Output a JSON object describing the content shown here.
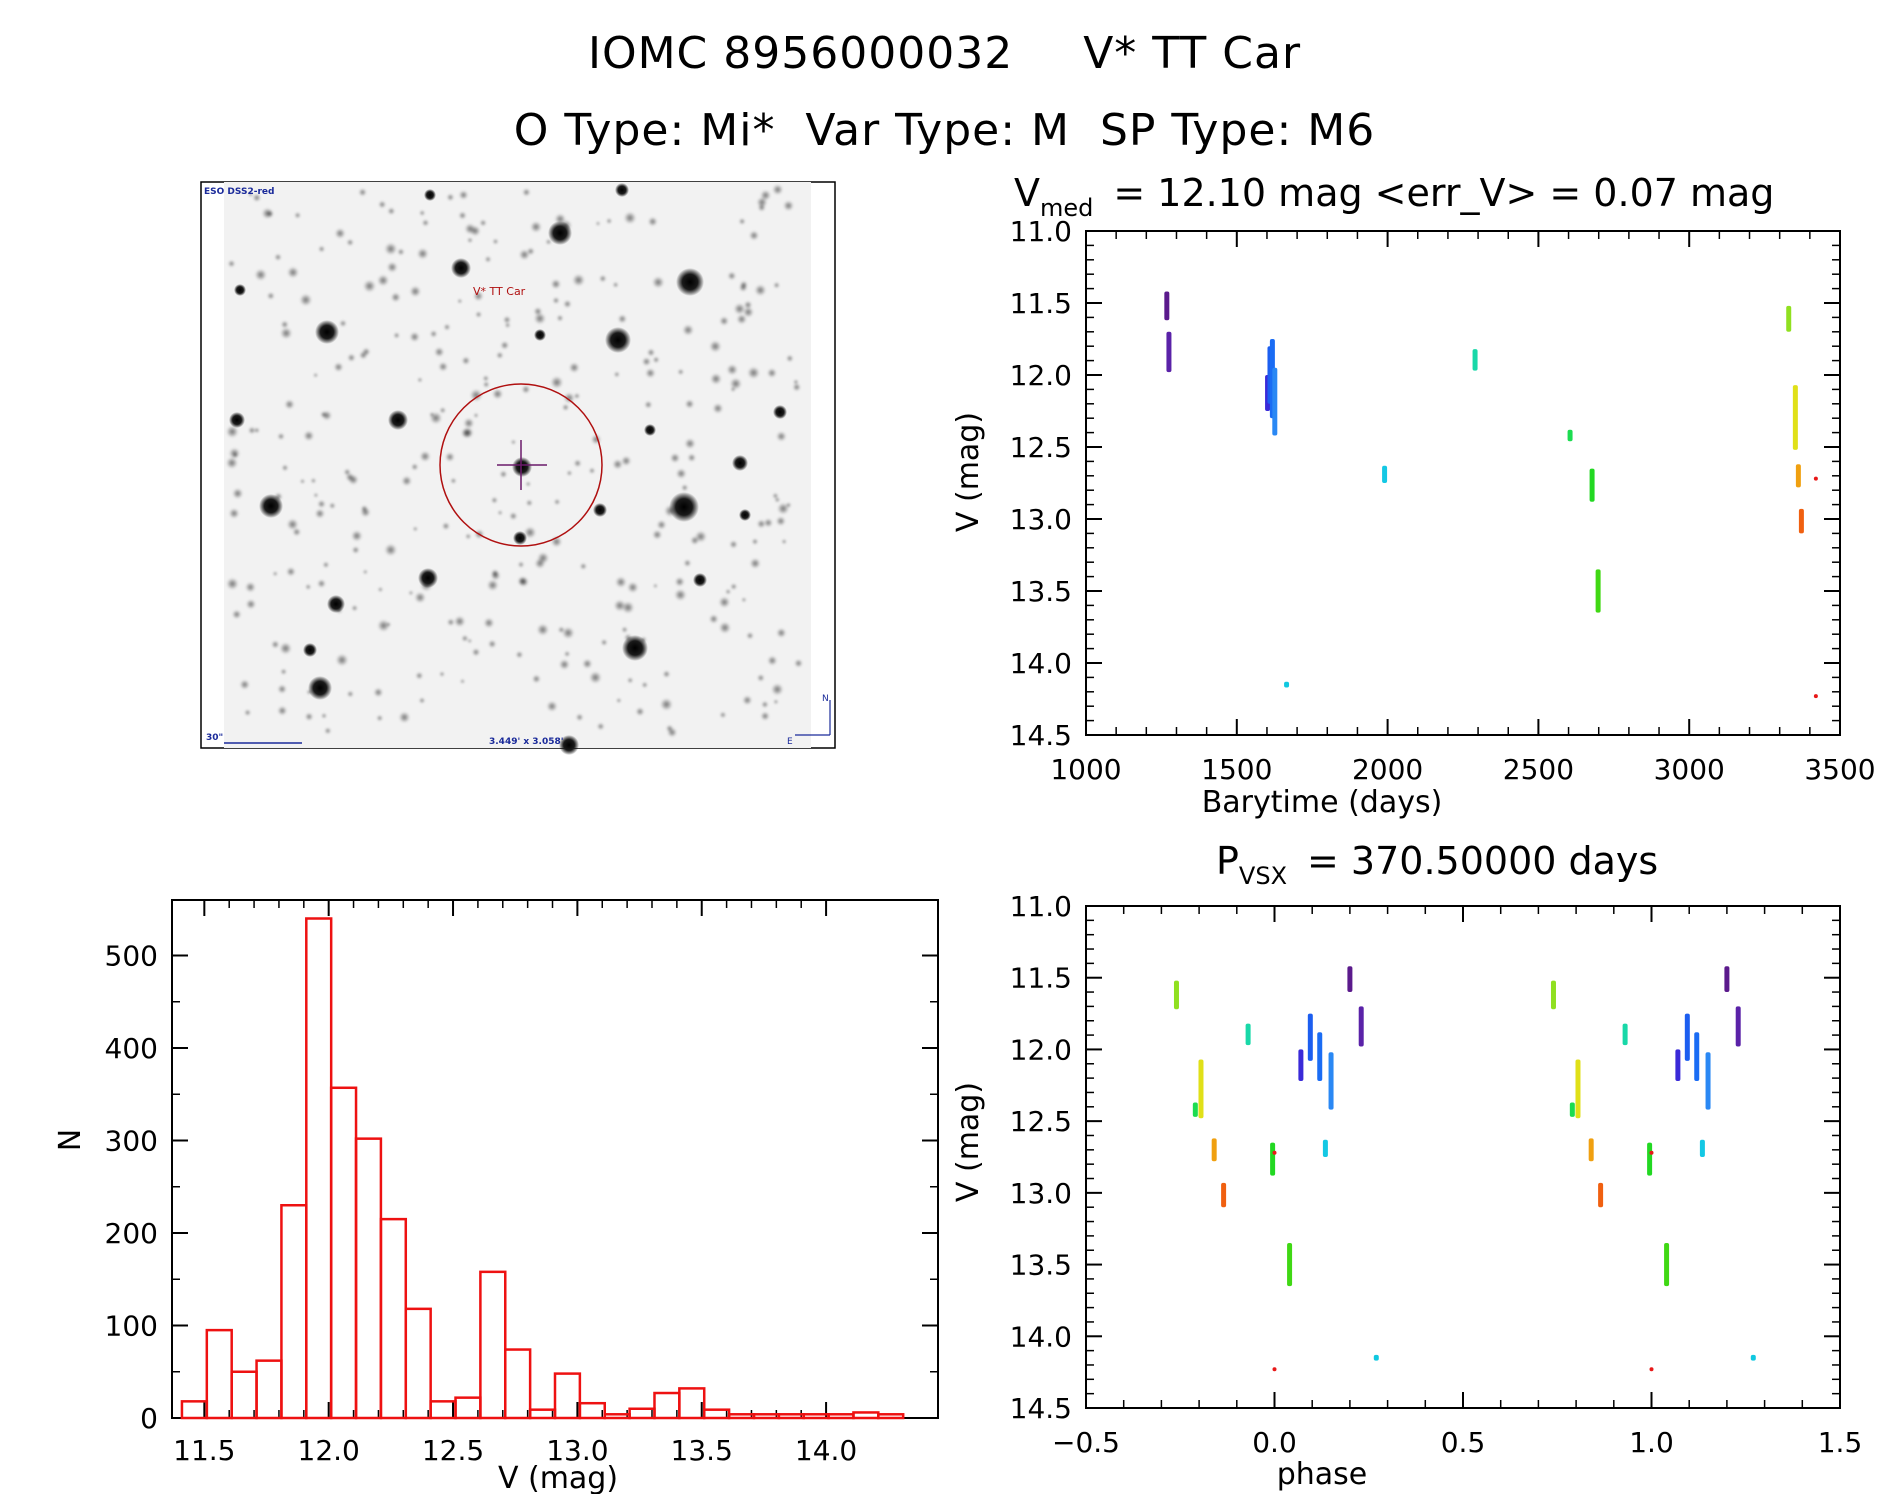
{
  "header": {
    "title_id": "IOMC 8956000032",
    "title_name": "V* TT Car",
    "subtitle": "O Type: Mi*  Var Type: M  SP Type: M6"
  },
  "finder": {
    "survey_label": "ESO DSS2-red",
    "target_label": "V* TT Car",
    "scale_label": "30\"",
    "fov_label": "3.449' x 3.058'",
    "north": "N",
    "east": "E"
  },
  "colors": {
    "hist": "#ee1111",
    "finder_circle": "#b01010",
    "finder_label": "#b01010",
    "finder_info": "#1a2a9a"
  },
  "chart_data": [
    {
      "type": "scatter",
      "id": "light_curve",
      "title_prefix": "V",
      "title_sub": "med",
      "title_rest": "= 12.10 mag <err_V> = 0.07 mag",
      "xlabel": "Barytime (days)",
      "ylabel": "V (mag)",
      "xlim": [
        1000,
        3500
      ],
      "ylim": [
        11.0,
        14.5
      ],
      "y_inverted": true,
      "x_ticks": [
        1000,
        1500,
        2000,
        2500,
        3000,
        3500
      ],
      "y_ticks": [
        11.0,
        11.5,
        12.0,
        12.5,
        13.0,
        13.5,
        14.0,
        14.5
      ],
      "x_tick_labels": [
        "1000",
        "1500",
        "2000",
        "2500",
        "3000",
        "3500"
      ],
      "y_tick_labels": [
        "11.0",
        "11.5",
        "12.0",
        "12.5",
        "13.0",
        "13.5",
        "14.0",
        "14.5"
      ],
      "segments": [
        {
          "x": 1268,
          "y0": 11.42,
          "y1": 11.62,
          "color": "#5b1a8c"
        },
        {
          "x": 1275,
          "y0": 11.7,
          "y1": 11.98,
          "color": "#5a22a8"
        },
        {
          "x": 1602,
          "y0": 12.0,
          "y1": 12.25,
          "color": "#3a2ad8"
        },
        {
          "x": 1610,
          "y0": 11.8,
          "y1": 12.2,
          "color": "#1c5ef0"
        },
        {
          "x": 1618,
          "y0": 11.75,
          "y1": 12.3,
          "color": "#1a6cf4"
        },
        {
          "x": 1626,
          "y0": 11.95,
          "y1": 12.42,
          "color": "#2a88f4"
        },
        {
          "x": 1665,
          "y0": 14.13,
          "y1": 14.17,
          "color": "#10c8e0"
        },
        {
          "x": 1990,
          "y0": 12.63,
          "y1": 12.75,
          "color": "#14c8e4"
        },
        {
          "x": 2290,
          "y0": 11.82,
          "y1": 11.97,
          "color": "#18d8a8"
        },
        {
          "x": 2605,
          "y0": 12.38,
          "y1": 12.46,
          "color": "#1cdc50"
        },
        {
          "x": 2678,
          "y0": 12.65,
          "y1": 12.88,
          "color": "#22d822"
        },
        {
          "x": 2698,
          "y0": 13.35,
          "y1": 13.65,
          "color": "#40d814"
        },
        {
          "x": 3330,
          "y0": 11.52,
          "y1": 11.7,
          "color": "#90e020"
        },
        {
          "x": 3352,
          "y0": 12.07,
          "y1": 12.52,
          "color": "#e0e018"
        },
        {
          "x": 3362,
          "y0": 12.62,
          "y1": 12.78,
          "color": "#f0a010"
        },
        {
          "x": 3372,
          "y0": 12.93,
          "y1": 13.1,
          "color": "#f06010"
        },
        {
          "x": 3420,
          "y0": 12.72,
          "y1": 12.72,
          "color": "#e81818"
        },
        {
          "x": 3420,
          "y0": 14.23,
          "y1": 14.23,
          "color": "#e81818"
        }
      ]
    },
    {
      "type": "scatter",
      "id": "phase_curve",
      "title_prefix": "P",
      "title_sub": "VSX",
      "title_rest": "= 370.50000 days",
      "xlabel": "phase",
      "ylabel": "V (mag)",
      "xlim": [
        -0.5,
        1.5
      ],
      "ylim": [
        11.0,
        14.5
      ],
      "y_inverted": true,
      "x_ticks": [
        -0.5,
        0.0,
        0.5,
        1.0,
        1.5
      ],
      "y_ticks": [
        11.0,
        11.5,
        12.0,
        12.5,
        13.0,
        13.5,
        14.0,
        14.5
      ],
      "x_tick_labels": [
        "−0.5",
        "0.0",
        "0.5",
        "1.0",
        "1.5"
      ],
      "y_tick_labels": [
        "11.0",
        "11.5",
        "12.0",
        "12.5",
        "13.0",
        "13.5",
        "14.0",
        "14.5"
      ],
      "segments": [
        {
          "x": -0.26,
          "y0": 11.52,
          "y1": 11.72,
          "color": "#90e020"
        },
        {
          "x": -0.21,
          "y0": 12.37,
          "y1": 12.47,
          "color": "#1cdc50"
        },
        {
          "x": -0.195,
          "y0": 12.07,
          "y1": 12.48,
          "color": "#e0e018"
        },
        {
          "x": -0.16,
          "y0": 12.62,
          "y1": 12.78,
          "color": "#f0a010"
        },
        {
          "x": -0.135,
          "y0": 12.93,
          "y1": 13.1,
          "color": "#f06010"
        },
        {
          "x": -0.07,
          "y0": 11.82,
          "y1": 11.97,
          "color": "#18d8a8"
        },
        {
          "x": -0.005,
          "y0": 12.65,
          "y1": 12.88,
          "color": "#22d822"
        },
        {
          "x": 0.0,
          "y0": 12.72,
          "y1": 12.72,
          "color": "#e81818"
        },
        {
          "x": 0.0,
          "y0": 14.23,
          "y1": 14.23,
          "color": "#e81818"
        },
        {
          "x": 0.04,
          "y0": 13.35,
          "y1": 13.65,
          "color": "#40d814"
        },
        {
          "x": 0.07,
          "y0": 12.0,
          "y1": 12.22,
          "color": "#3a2ad8"
        },
        {
          "x": 0.095,
          "y0": 11.75,
          "y1": 12.08,
          "color": "#1c5ef0"
        },
        {
          "x": 0.12,
          "y0": 11.88,
          "y1": 12.22,
          "color": "#1a6cf4"
        },
        {
          "x": 0.135,
          "y0": 12.63,
          "y1": 12.75,
          "color": "#14c8e4"
        },
        {
          "x": 0.15,
          "y0": 12.02,
          "y1": 12.42,
          "color": "#2a88f4"
        },
        {
          "x": 0.2,
          "y0": 11.42,
          "y1": 11.6,
          "color": "#5b1a8c"
        },
        {
          "x": 0.23,
          "y0": 11.7,
          "y1": 11.98,
          "color": "#5a22a8"
        },
        {
          "x": 0.27,
          "y0": 14.13,
          "y1": 14.17,
          "color": "#10c8e0"
        },
        {
          "x": 0.74,
          "y0": 11.52,
          "y1": 11.72,
          "color": "#90e020"
        },
        {
          "x": 0.79,
          "y0": 12.37,
          "y1": 12.47,
          "color": "#1cdc50"
        },
        {
          "x": 0.805,
          "y0": 12.07,
          "y1": 12.48,
          "color": "#e0e018"
        },
        {
          "x": 0.84,
          "y0": 12.62,
          "y1": 12.78,
          "color": "#f0a010"
        },
        {
          "x": 0.865,
          "y0": 12.93,
          "y1": 13.1,
          "color": "#f06010"
        },
        {
          "x": 0.93,
          "y0": 11.82,
          "y1": 11.97,
          "color": "#18d8a8"
        },
        {
          "x": 0.995,
          "y0": 12.65,
          "y1": 12.88,
          "color": "#22d822"
        },
        {
          "x": 1.0,
          "y0": 12.72,
          "y1": 12.72,
          "color": "#e81818"
        },
        {
          "x": 1.0,
          "y0": 14.23,
          "y1": 14.23,
          "color": "#e81818"
        },
        {
          "x": 1.04,
          "y0": 13.35,
          "y1": 13.65,
          "color": "#40d814"
        },
        {
          "x": 1.07,
          "y0": 12.0,
          "y1": 12.22,
          "color": "#3a2ad8"
        },
        {
          "x": 1.095,
          "y0": 11.75,
          "y1": 12.08,
          "color": "#1c5ef0"
        },
        {
          "x": 1.12,
          "y0": 11.88,
          "y1": 12.22,
          "color": "#1a6cf4"
        },
        {
          "x": 1.135,
          "y0": 12.63,
          "y1": 12.75,
          "color": "#14c8e4"
        },
        {
          "x": 1.15,
          "y0": 12.02,
          "y1": 12.42,
          "color": "#2a88f4"
        },
        {
          "x": 1.2,
          "y0": 11.42,
          "y1": 11.6,
          "color": "#5b1a8c"
        },
        {
          "x": 1.23,
          "y0": 11.7,
          "y1": 11.98,
          "color": "#5a22a8"
        },
        {
          "x": 1.27,
          "y0": 14.13,
          "y1": 14.17,
          "color": "#10c8e0"
        }
      ]
    },
    {
      "type": "bar",
      "id": "histogram",
      "xlabel": "V (mag)",
      "ylabel": "N",
      "xlim": [
        11.37,
        14.45
      ],
      "ylim": [
        0,
        560
      ],
      "x_ticks": [
        11.5,
        12.0,
        12.5,
        13.0,
        13.5,
        14.0
      ],
      "y_ticks": [
        0,
        100,
        200,
        300,
        400,
        500
      ],
      "x_tick_labels": [
        "11.5",
        "12.0",
        "12.5",
        "13.0",
        "13.5",
        "14.0"
      ],
      "y_tick_labels": [
        "0",
        "100",
        "200",
        "300",
        "400",
        "500"
      ],
      "bin_width": 0.1,
      "bin_starts": [
        11.41,
        11.51,
        11.61,
        11.71,
        11.81,
        11.91,
        12.01,
        12.11,
        12.21,
        12.31,
        12.41,
        12.51,
        12.61,
        12.71,
        12.81,
        12.91,
        13.01,
        13.11,
        13.21,
        13.31,
        13.41,
        13.51,
        13.61,
        13.71,
        13.81,
        13.91,
        14.01,
        14.11,
        14.21
      ],
      "values": [
        18,
        95,
        50,
        62,
        230,
        540,
        357,
        302,
        215,
        118,
        18,
        22,
        158,
        74,
        9,
        48,
        16,
        4,
        10,
        27,
        32,
        9,
        4,
        4,
        4,
        4,
        4,
        6,
        4
      ]
    }
  ]
}
